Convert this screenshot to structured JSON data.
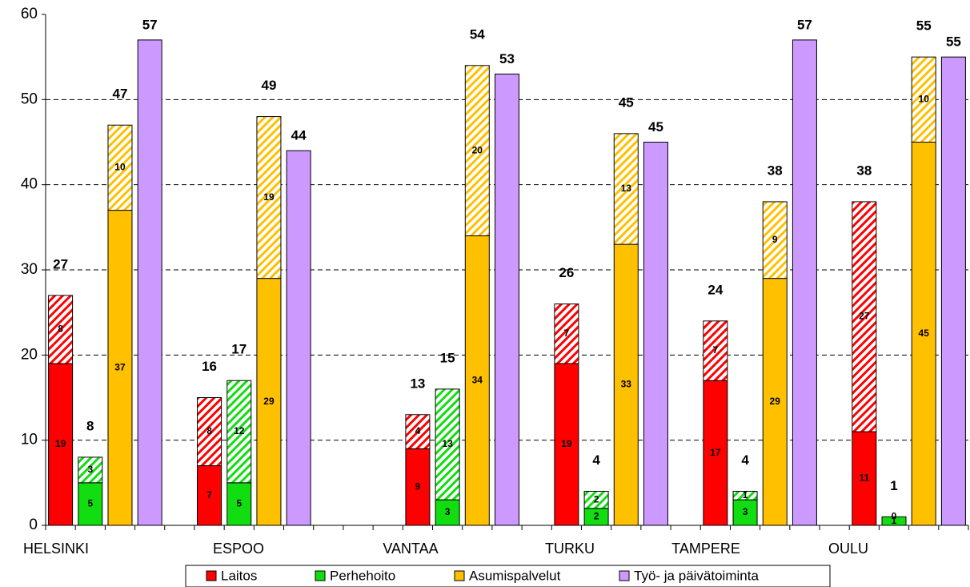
{
  "chart_data": {
    "type": "bar",
    "categories": [
      "HELSINKI",
      "ESPOO",
      "VANTAA",
      "TURKU",
      "TAMPERE",
      "OULU"
    ],
    "series": [
      {
        "name": "Laitos",
        "color": "#ff0000",
        "values": [
          19,
          7,
          9,
          19,
          17,
          11
        ],
        "hatched_values": [
          8,
          8,
          4,
          7,
          7,
          27
        ],
        "totals": [
          27,
          16,
          13,
          26,
          24,
          38
        ]
      },
      {
        "name": "Perhehoito",
        "color": "#11dd11",
        "values": [
          5,
          5,
          3,
          2,
          3,
          1
        ],
        "hatched_values": [
          3,
          12,
          13,
          2,
          1,
          0
        ],
        "totals": [
          8,
          17,
          15,
          4,
          4,
          1
        ]
      },
      {
        "name": "Asumispalvelut",
        "color": "#ffc000",
        "values": [
          37,
          29,
          34,
          33,
          29,
          45
        ],
        "hatched_values": [
          10,
          19,
          20,
          13,
          9,
          10
        ],
        "totals": [
          47,
          49,
          54,
          45,
          38,
          55
        ]
      },
      {
        "name": "Työ- ja päivätoiminta",
        "color": "#cc99ff",
        "values": [
          57,
          44,
          53,
          45,
          57,
          55
        ]
      }
    ],
    "ylim": [
      0,
      60
    ],
    "yticks": [
      0,
      10,
      20,
      30,
      40,
      50,
      60
    ],
    "grid": true
  }
}
